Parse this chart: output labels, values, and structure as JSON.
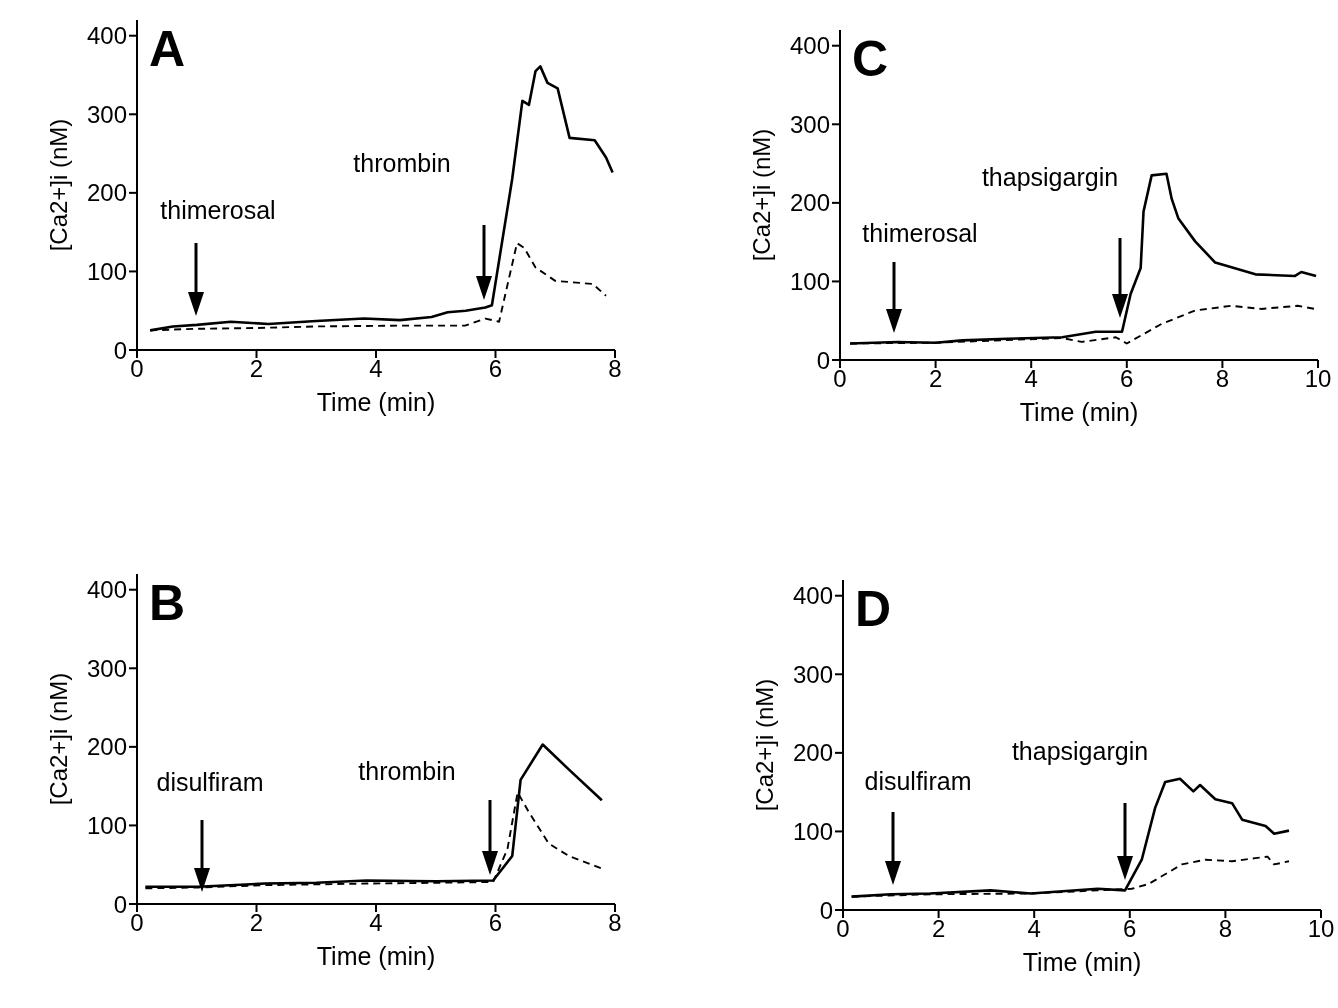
{
  "chart_data": [
    {
      "type": "line",
      "title": "A",
      "xlabel": "Time (min)",
      "ylabel": "[Ca2+]i (nM)",
      "xlim": [
        0,
        8
      ],
      "xticks": [
        0,
        2,
        4,
        6,
        8
      ],
      "ylim": [
        0,
        420
      ],
      "yticks": [
        0,
        100,
        200,
        300,
        400
      ],
      "series": [
        {
          "color": "#000000",
          "line_style": "solid",
          "x": [
            0.22,
            0.6,
            1.0,
            1.57,
            2.2,
            3.0,
            3.8,
            4.4,
            4.93,
            5.2,
            5.5,
            5.83,
            5.94,
            6.28,
            6.45,
            6.56,
            6.67,
            6.75,
            6.87,
            7.04,
            7.24,
            7.66,
            7.85,
            7.96
          ],
          "values": [
            25,
            30,
            32,
            36,
            33,
            37,
            40,
            38,
            42,
            48,
            50,
            54,
            57,
            218,
            317,
            312,
            355,
            361,
            340,
            333,
            270,
            267,
            245,
            226
          ]
        },
        {
          "color": "#000000",
          "line_style": "dashed",
          "x": [
            0.22,
            1.0,
            2.0,
            3.0,
            4.38,
            5.49,
            5.83,
            6.06,
            6.36,
            6.48,
            6.67,
            7.0,
            7.63,
            7.85
          ],
          "values": [
            25,
            27,
            28,
            30,
            31,
            31,
            40,
            36,
            136,
            130,
            105,
            88,
            84,
            69
          ]
        }
      ],
      "annotations": [
        "thimerosal",
        "thrombin"
      ]
    },
    {
      "type": "line",
      "title": "C",
      "xlabel": "Time (min)",
      "ylabel": "[Ca2+]i (nM)",
      "xlim": [
        0,
        10
      ],
      "xticks": [
        0,
        2,
        4,
        6,
        8,
        10
      ],
      "ylim": [
        0,
        420
      ],
      "yticks": [
        0,
        100,
        200,
        300,
        400
      ],
      "series": [
        {
          "color": "#000000",
          "line_style": "solid",
          "x": [
            0.21,
            1.2,
            2.0,
            2.56,
            3.5,
            4.65,
            5.35,
            5.9,
            6.08,
            6.29,
            6.35,
            6.52,
            6.83,
            6.94,
            7.08,
            7.43,
            7.85,
            8.69,
            9.52,
            9.65,
            9.96
          ],
          "values": [
            21,
            23,
            22,
            25,
            27,
            29,
            36,
            36,
            84,
            117,
            189,
            235,
            237,
            205,
            180,
            151,
            124,
            109,
            107,
            112,
            107
          ]
        },
        {
          "color": "#000000",
          "line_style": "dashed",
          "x": [
            0.21,
            2.0,
            4.65,
            5.06,
            5.77,
            6.0,
            6.73,
            7.43,
            8.19,
            8.81,
            9.58,
            9.94
          ],
          "values": [
            21,
            22,
            28,
            23,
            29,
            21,
            46,
            63,
            69,
            65,
            69,
            65
          ]
        }
      ],
      "annotations": [
        "thimerosal",
        "thapsigargin"
      ]
    },
    {
      "type": "line",
      "title": "B",
      "xlabel": "Time (min)",
      "ylabel": "[Ca2+]i (nM)",
      "xlim": [
        0,
        8
      ],
      "xticks": [
        0,
        2,
        4,
        6,
        8
      ],
      "ylim": [
        0,
        420
      ],
      "yticks": [
        0,
        100,
        200,
        300,
        400
      ],
      "series": [
        {
          "color": "#000000",
          "line_style": "solid",
          "x": [
            0.14,
            1.02,
            2.14,
            3.0,
            3.84,
            5.0,
            5.96,
            6.28,
            6.42,
            6.79,
            7.23,
            7.78
          ],
          "values": [
            22,
            22,
            26,
            27,
            30,
            29,
            30,
            61,
            158,
            203,
            171,
            132
          ]
        },
        {
          "color": "#000000",
          "line_style": "dashed",
          "x": [
            0.14,
            1.02,
            2.14,
            3.84,
            5.0,
            5.96,
            6.2,
            6.37,
            6.55,
            6.89,
            7.23,
            7.78
          ],
          "values": [
            20,
            21,
            24,
            26,
            27,
            28,
            70,
            142,
            118,
            77,
            61,
            45
          ]
        }
      ],
      "annotations": [
        "disulfiram",
        "thrombin"
      ]
    },
    {
      "type": "line",
      "title": "D",
      "xlabel": "Time (min)",
      "ylabel": "[Ca2+]i (nM)",
      "xlim": [
        0,
        10
      ],
      "xticks": [
        0,
        2,
        4,
        6,
        8,
        10
      ],
      "ylim": [
        0,
        420
      ],
      "yticks": [
        0,
        100,
        200,
        300,
        400
      ],
      "series": [
        {
          "color": "#000000",
          "line_style": "solid",
          "x": [
            0.18,
            1.0,
            1.82,
            3.09,
            3.93,
            5.33,
            5.9,
            6.25,
            6.53,
            6.74,
            7.05,
            7.33,
            7.47,
            7.79,
            8.14,
            8.35,
            8.84,
            9.02,
            9.33
          ],
          "values": [
            17,
            20,
            21,
            25,
            21,
            27,
            25,
            64,
            130,
            163,
            167,
            151,
            159,
            141,
            136,
            115,
            107,
            97,
            101
          ]
        },
        {
          "color": "#000000",
          "line_style": "dashed",
          "x": [
            0.18,
            1.82,
            3.93,
            5.33,
            6.04,
            6.39,
            7.09,
            7.58,
            8.14,
            8.63,
            8.88,
            9.02,
            9.33
          ],
          "values": [
            17,
            20,
            21,
            25,
            27,
            33,
            58,
            64,
            62,
            66,
            68,
            58,
            62
          ]
        }
      ],
      "annotations": [
        "disulfiram",
        "thapsigargin"
      ]
    }
  ]
}
